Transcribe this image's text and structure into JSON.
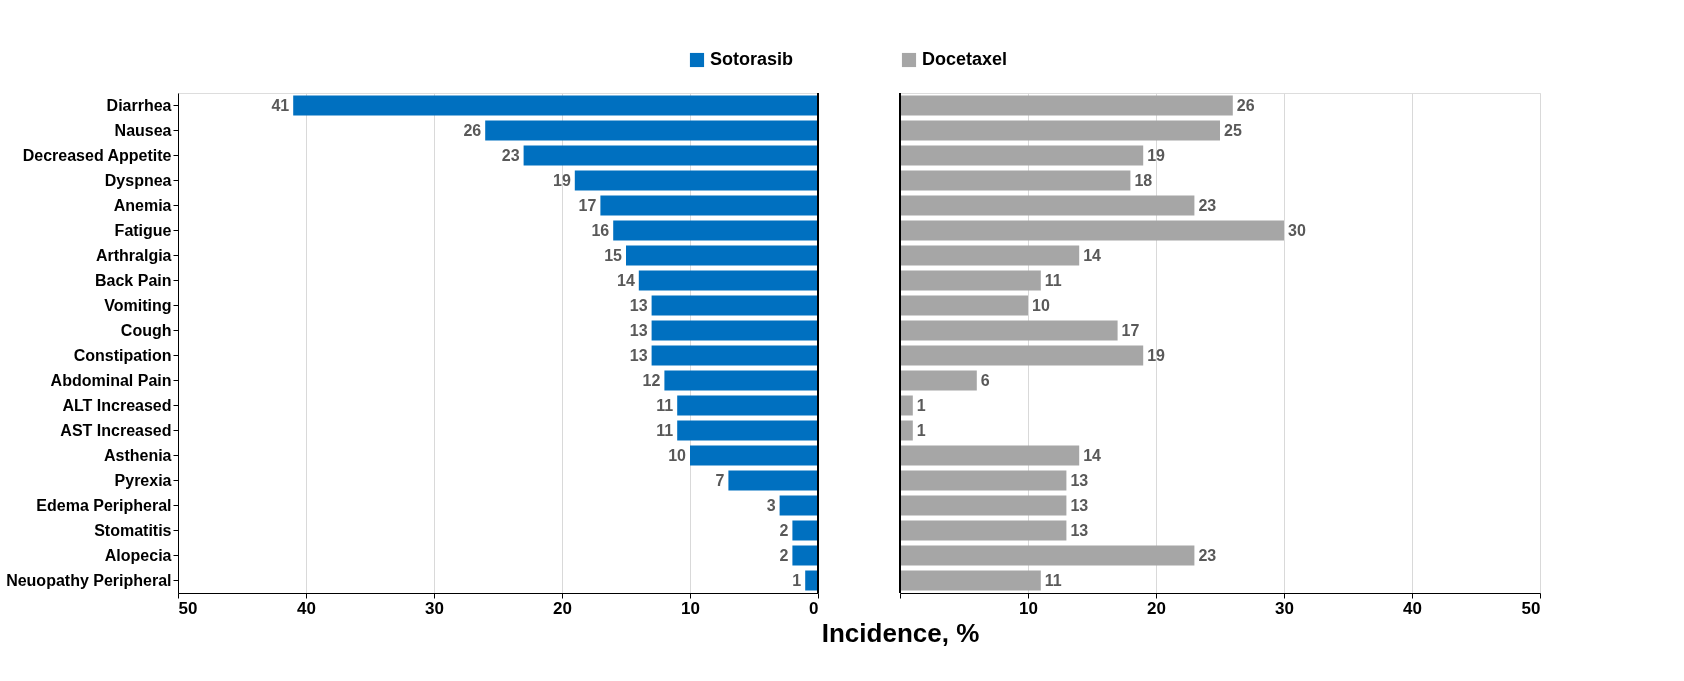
{
  "chart_data": [
    {
      "type": "bar",
      "orientation": "horizontal",
      "categories": [
        "Diarrhea",
        "Nausea",
        "Decreased Appetite",
        "Dyspnea",
        "Anemia",
        "Fatigue",
        "Arthralgia",
        "Back Pain",
        "Vomiting",
        "Cough",
        "Constipation",
        "Abdominal Pain",
        "ALT Increased",
        "AST Increased",
        "Asthenia",
        "Pyrexia",
        "Edema Peripheral",
        "Stomatitis",
        "Alopecia",
        "Neuopathy Peripheral"
      ],
      "series": [
        {
          "name": "Sotorasib",
          "color": "#0070c0",
          "values": [
            41,
            26,
            23,
            19,
            17,
            16,
            15,
            14,
            13,
            13,
            13,
            12,
            11,
            11,
            10,
            7,
            3,
            2,
            2,
            1
          ]
        }
      ],
      "xlim": [
        50,
        0
      ],
      "xticks": [
        50,
        40,
        30,
        20,
        10,
        0
      ],
      "grid": "x",
      "legend": "top right",
      "data_labels": true
    },
    {
      "type": "bar",
      "orientation": "horizontal",
      "xlabel": "Incidence, %",
      "categories": [
        "Diarrhea",
        "Nausea",
        "Decreased Appetite",
        "Dyspnea",
        "Anemia",
        "Fatigue",
        "Arthralgia",
        "Back Pain",
        "Vomiting",
        "Cough",
        "Constipation",
        "Abdominal Pain",
        "ALT Increased",
        "AST Increased",
        "Asthenia",
        "Pyrexia",
        "Edema Peripheral",
        "Stomatitis",
        "Alopecia",
        "Neuopathy Peripheral"
      ],
      "series": [
        {
          "name": "Docetaxel",
          "color": "#a6a6a6",
          "values": [
            26,
            25,
            19,
            18,
            23,
            30,
            14,
            11,
            10,
            17,
            19,
            6,
            1,
            1,
            14,
            13,
            13,
            13,
            23,
            11
          ]
        }
      ],
      "xlim": [
        0,
        50
      ],
      "xticks": [
        {
          "value": 0,
          "label": null
        },
        10,
        20,
        30,
        40,
        50
      ],
      "grid": "x",
      "legend": "top left",
      "data_labels": true,
      "tick_labels": "x"
    }
  ]
}
